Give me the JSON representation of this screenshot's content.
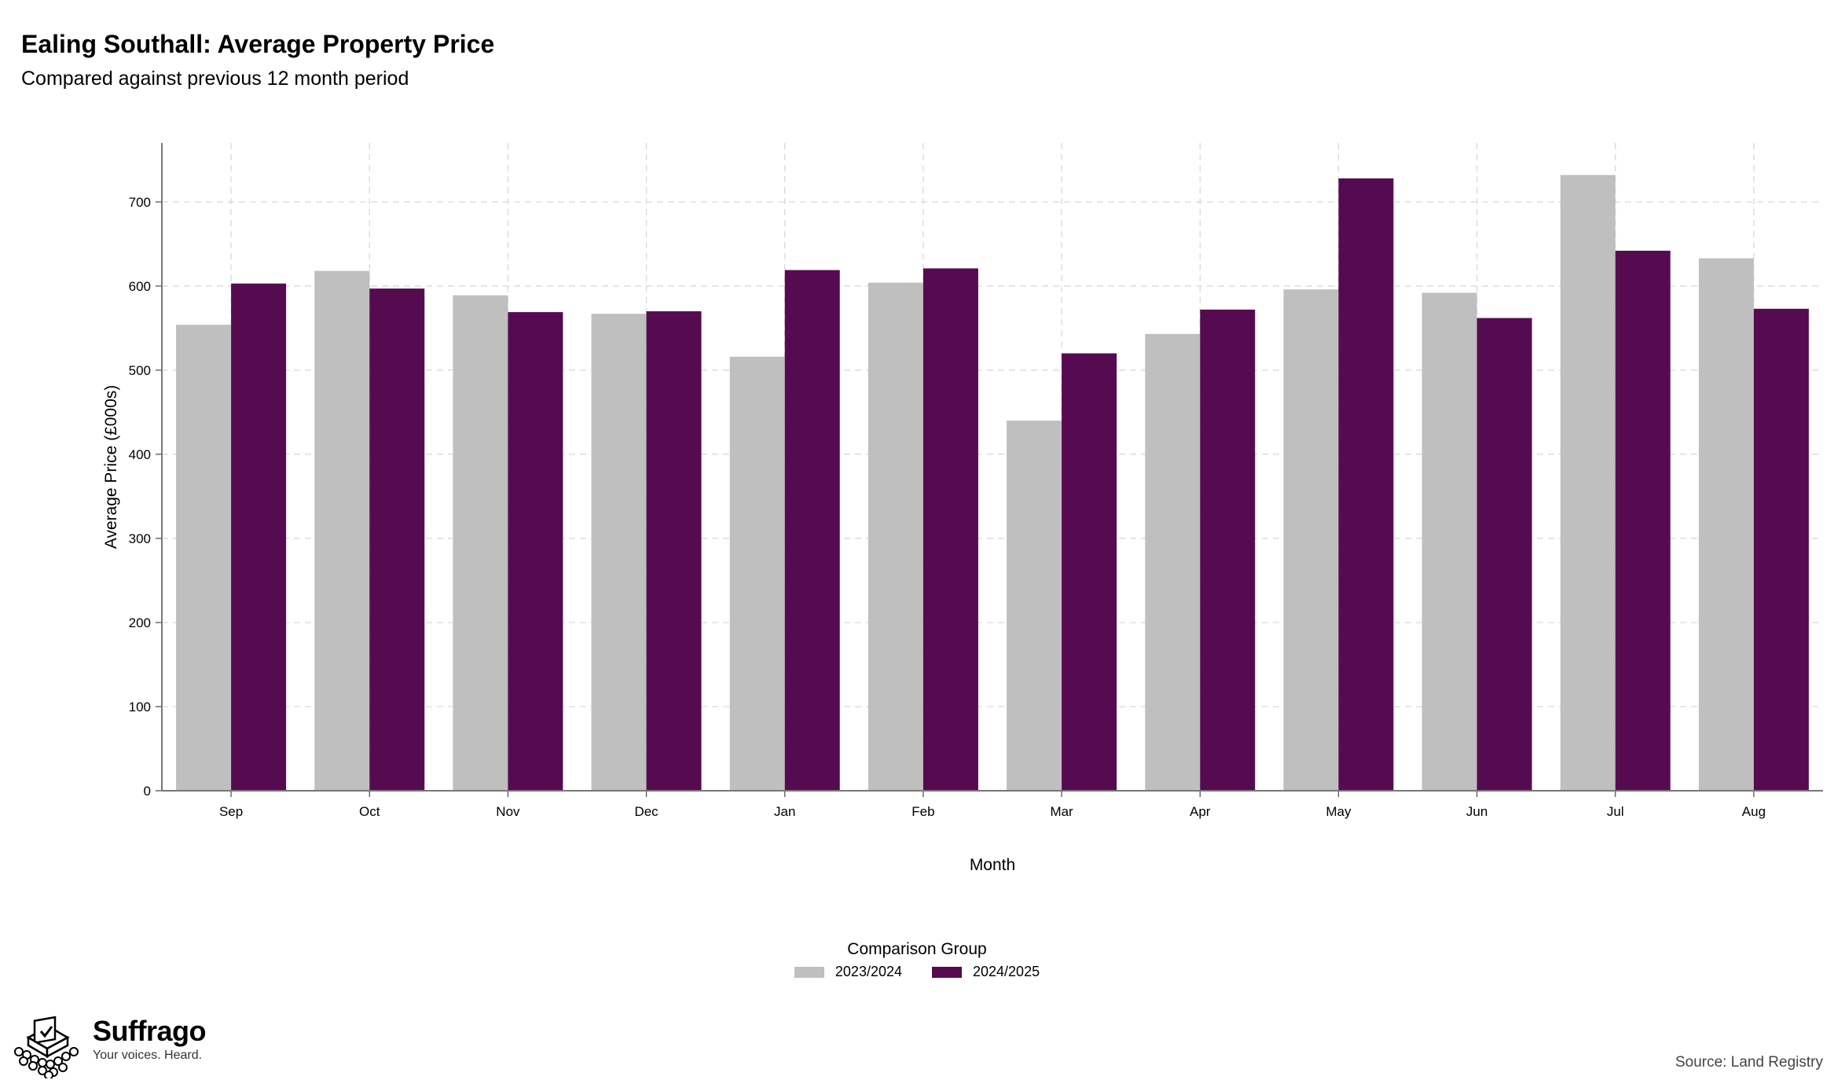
{
  "header": {
    "title": "Ealing Southall: Average Property Price",
    "subtitle": "Compared against previous 12 month period"
  },
  "chart_data": {
    "type": "bar",
    "categories": [
      "Sep",
      "Oct",
      "Nov",
      "Dec",
      "Jan",
      "Feb",
      "Mar",
      "Apr",
      "May",
      "Jun",
      "Jul",
      "Aug"
    ],
    "series": [
      {
        "name": "2023/2024",
        "color": "#bfbfbf",
        "values": [
          554,
          618,
          589,
          567,
          516,
          604,
          440,
          543,
          596,
          592,
          732,
          633
        ]
      },
      {
        "name": "2024/2025",
        "color": "#560b51",
        "values": [
          603,
          597,
          569,
          570,
          619,
          621,
          520,
          572,
          728,
          562,
          642,
          573
        ]
      }
    ],
    "xlabel": "Month",
    "ylabel": "Average Price (£000s)",
    "ylim": [
      0,
      770
    ],
    "yticks": [
      0,
      100,
      200,
      300,
      400,
      500,
      600,
      700
    ],
    "grid": true,
    "legend": {
      "title": "Comparison Group",
      "position": "bottom-center"
    }
  },
  "footer": {
    "brand_name": "Suffrago",
    "brand_tagline": "Your voices. Heard.",
    "source": "Source: Land Registry"
  }
}
